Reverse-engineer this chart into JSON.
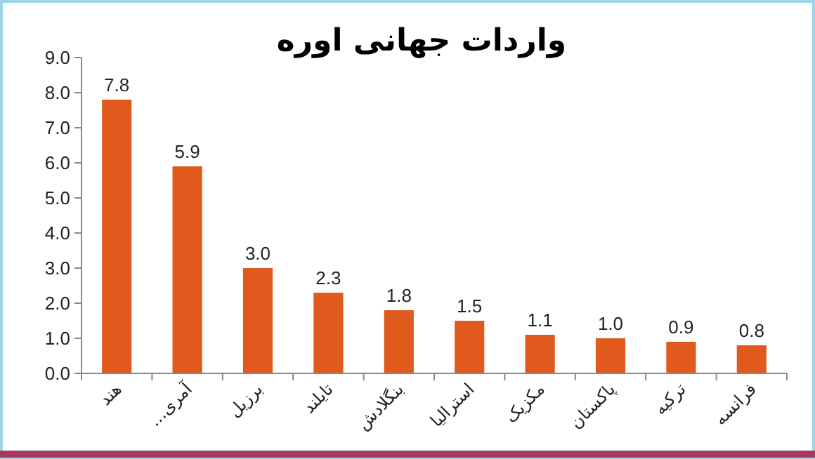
{
  "chart_data": {
    "type": "bar",
    "title": "واردات جهانی اوره",
    "categories": [
      "هند",
      "آمری...",
      "برزیل",
      "تایلند",
      "بنگلادش",
      "استرالیا",
      "مکزیک",
      "پاکستان",
      "ترکیه",
      "فرانسه"
    ],
    "values": [
      7.8,
      5.9,
      3.0,
      2.3,
      1.8,
      1.5,
      1.1,
      1.0,
      0.9,
      0.8
    ],
    "color": "#e05a1e",
    "ylim": [
      0,
      9
    ],
    "yticks": [
      {
        "value": 0,
        "label": "0.0"
      },
      {
        "value": 1,
        "label": "1.0"
      },
      {
        "value": 2,
        "label": "2.0"
      },
      {
        "value": 3,
        "label": "3.0"
      },
      {
        "value": 4,
        "label": "4.0"
      },
      {
        "value": 5,
        "label": "5.0"
      },
      {
        "value": 6,
        "label": "6.0"
      },
      {
        "value": 7,
        "label": "7.0"
      },
      {
        "value": 8,
        "label": "8.0"
      },
      {
        "value": 9,
        "label": "9.0"
      }
    ],
    "value_labels": [
      "7.8",
      "5.9",
      "3.0",
      "2.3",
      "1.8",
      "1.5",
      "1.1",
      "1.0",
      "0.9",
      "0.8"
    ],
    "grid": false
  }
}
